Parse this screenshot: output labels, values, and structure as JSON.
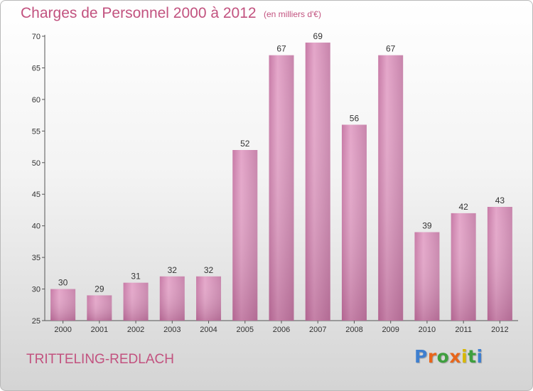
{
  "header": {
    "title": "Charges de Personnel 2000 à 2012",
    "subtitle": "(en milliers d'€)"
  },
  "footer": {
    "place": "TRITTELING-REDLACH",
    "logo_letters": [
      {
        "ch": "P",
        "color": "#3f7fcf"
      },
      {
        "ch": "r",
        "color": "#e8661b"
      },
      {
        "ch": "o",
        "color": "#3f9f3f"
      },
      {
        "ch": "x",
        "color": "#e8661b"
      },
      {
        "ch": "i",
        "color": "#d8b800"
      },
      {
        "ch": "t",
        "color": "#3f9f3f"
      },
      {
        "ch": "i",
        "color": "#3f7fcf"
      }
    ]
  },
  "chart_data": {
    "type": "bar",
    "title": "Charges de Personnel 2000 à 2012",
    "subtitle": "(en milliers d'€)",
    "categories": [
      "2000",
      "2001",
      "2002",
      "2003",
      "2004",
      "2005",
      "2006",
      "2007",
      "2008",
      "2009",
      "2010",
      "2011",
      "2012"
    ],
    "values": [
      30,
      29,
      31,
      32,
      32,
      52,
      67,
      69,
      56,
      67,
      39,
      42,
      43
    ],
    "ylim": [
      25,
      70
    ],
    "yticks": [
      25,
      30,
      35,
      40,
      45,
      50,
      55,
      60,
      65,
      70
    ],
    "grid": false,
    "bar_color": "#d690b8"
  }
}
